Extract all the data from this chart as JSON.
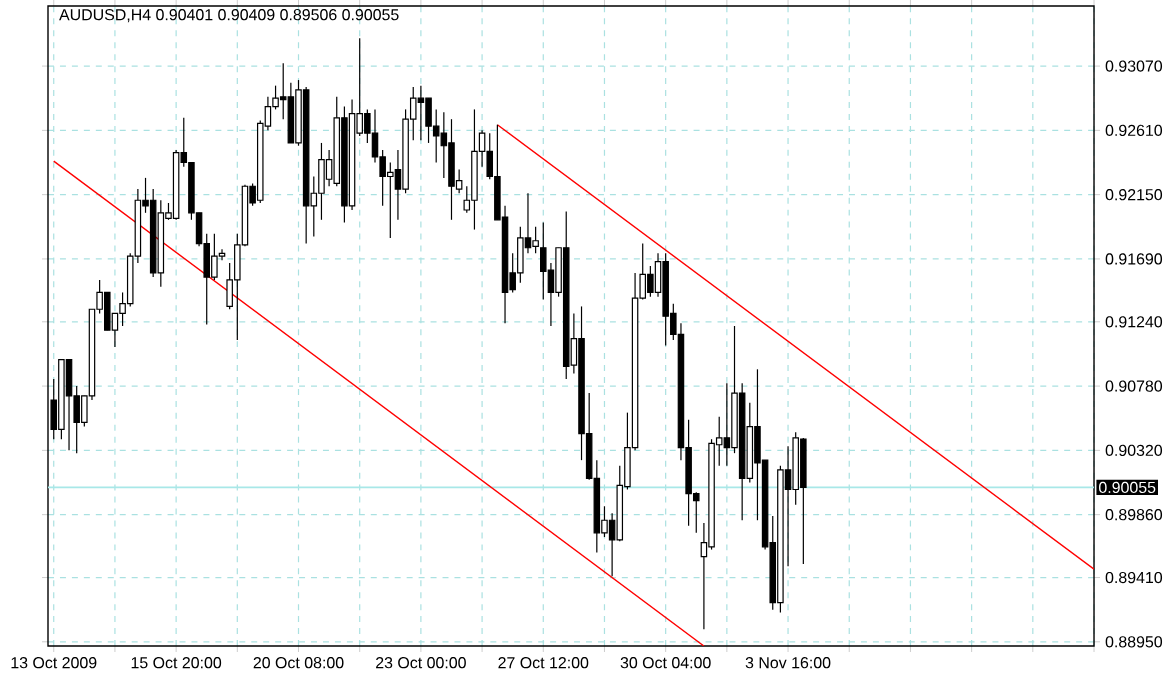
{
  "chart_data": {
    "type": "candlestick",
    "title": "AUDUSD,H4  0.90401 0.90409 0.89506 0.90055",
    "categories": [
      "13 Oct 2009",
      null,
      null,
      null,
      null,
      null,
      null,
      null,
      null,
      null,
      null,
      null,
      null,
      null,
      null,
      null,
      "15 Oct 20:00",
      null,
      null,
      null,
      null,
      null,
      null,
      null,
      null,
      null,
      null,
      null,
      null,
      null,
      null,
      null,
      "20 Oct 08:00",
      null,
      null,
      null,
      null,
      null,
      null,
      null,
      null,
      null,
      null,
      null,
      null,
      null,
      null,
      null,
      "23 Oct 00:00",
      null,
      null,
      null,
      null,
      null,
      null,
      null,
      null,
      null,
      null,
      null,
      null,
      null,
      null,
      null,
      "27 Oct 12:00",
      null,
      null,
      null,
      null,
      null,
      null,
      null,
      null,
      null,
      null,
      null,
      null,
      null,
      null,
      null,
      "30 Oct 04:00",
      null,
      null,
      null,
      null,
      null,
      null,
      null,
      null,
      null,
      null,
      null,
      null,
      null,
      null,
      null,
      "3 Nov 16:00",
      null,
      null,
      null,
      null,
      null,
      null,
      null,
      null,
      null,
      null,
      null,
      null,
      null,
      null,
      null,
      null,
      null,
      null,
      null,
      null,
      null,
      null,
      null,
      null,
      null,
      null,
      null,
      null,
      null,
      null,
      null,
      null,
      null,
      null,
      null,
      null,
      null,
      null,
      null,
      null
    ],
    "ohlc": [
      [
        0.9068,
        0.9083,
        0.904,
        0.9047
      ],
      [
        0.9047,
        0.9097,
        0.904,
        0.9097
      ],
      [
        0.9097,
        0.9097,
        0.9032,
        0.9071
      ],
      [
        0.9071,
        0.9078,
        0.903,
        0.9052
      ],
      [
        0.9052,
        0.9071,
        0.9049,
        0.9071
      ],
      [
        0.9071,
        0.9133,
        0.9068,
        0.9133
      ],
      [
        0.9133,
        0.9154,
        0.913,
        0.9145
      ],
      [
        0.9145,
        0.9145,
        0.9118,
        0.9118
      ],
      [
        0.9118,
        0.913,
        0.9106,
        0.913
      ],
      [
        0.913,
        0.9145,
        0.9121,
        0.9137
      ],
      [
        0.9137,
        0.9173,
        0.9135,
        0.9171
      ],
      [
        0.9171,
        0.9219,
        0.9166,
        0.9211
      ],
      [
        0.9211,
        0.9227,
        0.9202,
        0.9207
      ],
      [
        0.9211,
        0.9219,
        0.9156,
        0.9159
      ],
      [
        0.9159,
        0.9211,
        0.9149,
        0.9202
      ],
      [
        0.9198,
        0.9209,
        0.9197,
        0.9202
      ],
      [
        0.9198,
        0.9247,
        0.9197,
        0.9245
      ],
      [
        0.9245,
        0.927,
        0.9235,
        0.9238
      ],
      [
        0.9238,
        0.9238,
        0.9197,
        0.9202
      ],
      [
        0.9202,
        0.9202,
        0.9178,
        0.918
      ],
      [
        0.918,
        0.9187,
        0.9122,
        0.9156
      ],
      [
        0.9156,
        0.9187,
        0.9154,
        0.9171
      ],
      [
        0.9171,
        0.9176,
        0.9168,
        0.9173
      ],
      [
        0.9135,
        0.9166,
        0.9133,
        0.9154
      ],
      [
        0.9154,
        0.9187,
        0.9111,
        0.9179
      ],
      [
        0.9179,
        0.9222,
        0.9178,
        0.9221
      ],
      [
        0.9221,
        0.9223,
        0.9207,
        0.9209
      ],
      [
        0.9211,
        0.9268,
        0.9209,
        0.9266
      ],
      [
        0.9264,
        0.9285,
        0.9261,
        0.9278
      ],
      [
        0.9278,
        0.9293,
        0.9276,
        0.9284
      ],
      [
        0.9285,
        0.9309,
        0.9269,
        0.9283
      ],
      [
        0.9285,
        0.9295,
        0.9252,
        0.9252
      ],
      [
        0.9252,
        0.9297,
        0.925,
        0.929
      ],
      [
        0.929,
        0.9292,
        0.918,
        0.9207
      ],
      [
        0.9207,
        0.9228,
        0.9185,
        0.9216
      ],
      [
        0.9216,
        0.9252,
        0.9197,
        0.924
      ],
      [
        0.9226,
        0.9247,
        0.9221,
        0.924
      ],
      [
        0.9223,
        0.9285,
        0.9221,
        0.927
      ],
      [
        0.927,
        0.9278,
        0.9195,
        0.9207
      ],
      [
        0.9207,
        0.9283,
        0.9204,
        0.9273
      ],
      [
        0.9259,
        0.9327,
        0.9257,
        0.9273
      ],
      [
        0.9273,
        0.9276,
        0.9252,
        0.9259
      ],
      [
        0.9259,
        0.9276,
        0.9238,
        0.9242
      ],
      [
        0.9242,
        0.9247,
        0.9207,
        0.9228
      ],
      [
        0.9228,
        0.9238,
        0.9184,
        0.9231
      ],
      [
        0.9233,
        0.9247,
        0.9197,
        0.9219
      ],
      [
        0.9219,
        0.9276,
        0.9216,
        0.9269
      ],
      [
        0.9269,
        0.9292,
        0.9254,
        0.9284
      ],
      [
        0.9284,
        0.9293,
        0.9254,
        0.9281
      ],
      [
        0.9284,
        0.9284,
        0.9252,
        0.9264
      ],
      [
        0.9264,
        0.9276,
        0.9238,
        0.9257
      ],
      [
        0.9259,
        0.9274,
        0.9227,
        0.925
      ],
      [
        0.9252,
        0.9269,
        0.9197,
        0.9221
      ],
      [
        0.9219,
        0.9233,
        0.9216,
        0.9225
      ],
      [
        0.9204,
        0.9221,
        0.9202,
        0.9211
      ],
      [
        0.9211,
        0.9276,
        0.919,
        0.9246
      ],
      [
        0.9246,
        0.9261,
        0.9235,
        0.9259
      ],
      [
        0.9246,
        0.9259,
        0.9226,
        0.9228
      ],
      [
        0.9228,
        0.9265,
        0.9197,
        0.9197
      ],
      [
        0.9199,
        0.9207,
        0.9123,
        0.9145
      ],
      [
        0.9159,
        0.9173,
        0.9145,
        0.9147
      ],
      [
        0.9159,
        0.9192,
        0.9152,
        0.9184
      ],
      [
        0.9184,
        0.9216,
        0.9173,
        0.9177
      ],
      [
        0.9178,
        0.9192,
        0.9173,
        0.9182
      ],
      [
        0.9177,
        0.9195,
        0.914,
        0.916
      ],
      [
        0.9161,
        0.9166,
        0.9121,
        0.9145
      ],
      [
        0.9145,
        0.9177,
        0.9142,
        0.9177
      ],
      [
        0.9177,
        0.9203,
        0.9083,
        0.9092
      ],
      [
        0.9093,
        0.913,
        0.9087,
        0.9112
      ],
      [
        0.9112,
        0.9135,
        0.9025,
        0.9044
      ],
      [
        0.9044,
        0.9073,
        0.9011,
        0.9012
      ],
      [
        0.9012,
        0.9025,
        0.8959,
        0.8973
      ],
      [
        0.8973,
        0.8992,
        0.897,
        0.8982
      ],
      [
        0.8982,
        0.8987,
        0.8942,
        0.8968
      ],
      [
        0.8968,
        0.9021,
        0.8967,
        0.9007
      ],
      [
        0.9006,
        0.9059,
        0.9004,
        0.9034
      ],
      [
        0.9034,
        0.9159,
        0.9032,
        0.9141
      ],
      [
        0.9141,
        0.918,
        0.914,
        0.9158
      ],
      [
        0.9158,
        0.9164,
        0.9142,
        0.9145
      ],
      [
        0.9145,
        0.9173,
        0.9142,
        0.9167
      ],
      [
        0.9167,
        0.9173,
        0.9107,
        0.9128
      ],
      [
        0.913,
        0.9137,
        0.9111,
        0.9115
      ],
      [
        0.9115,
        0.9123,
        0.9025,
        0.9034
      ],
      [
        0.9034,
        0.9054,
        0.8978,
        0.9001
      ],
      [
        0.9001,
        0.9002,
        0.8973,
        0.8996
      ],
      [
        0.8956,
        0.898,
        0.8904,
        0.8966
      ],
      [
        0.8963,
        0.904,
        0.8961,
        0.9037
      ],
      [
        0.9036,
        0.9056,
        0.9021,
        0.9041
      ],
      [
        0.9041,
        0.908,
        0.9021,
        0.9034
      ],
      [
        0.9034,
        0.9121,
        0.903,
        0.9073
      ],
      [
        0.9073,
        0.908,
        0.8982,
        0.9012
      ],
      [
        0.9012,
        0.9066,
        0.9009,
        0.9049
      ],
      [
        0.9049,
        0.909,
        0.8982,
        0.9023
      ],
      [
        0.9025,
        0.9025,
        0.8961,
        0.8963
      ],
      [
        0.8966,
        0.8985,
        0.8918,
        0.8923
      ],
      [
        0.8923,
        0.9021,
        0.8916,
        0.9018
      ],
      [
        0.9018,
        0.9035,
        0.8949,
        0.9004
      ],
      [
        0.9004,
        0.9045,
        0.8993,
        0.9041
      ],
      [
        0.90401,
        0.90409,
        0.89506,
        0.90055
      ],
      null,
      null,
      null,
      null,
      null,
      null,
      null,
      null,
      null,
      null,
      null,
      null,
      null,
      null,
      null,
      null,
      null,
      null,
      null,
      null,
      null,
      null,
      null,
      null,
      null,
      null,
      null,
      null,
      null,
      null,
      null,
      null,
      null,
      null,
      null,
      null,
      null,
      null
    ],
    "series": [
      {
        "type": "line",
        "color": "#ff0000",
        "values": [
          null,
          null,
          null,
          null,
          null,
          null,
          null,
          null,
          null,
          null,
          null,
          null,
          null,
          null,
          null,
          null,
          null,
          null,
          null,
          null,
          null,
          null,
          null,
          null,
          null,
          null,
          null,
          null,
          null,
          null,
          null,
          null,
          null,
          null,
          null,
          null,
          null,
          null,
          null,
          null,
          null,
          null,
          null,
          null,
          null,
          null,
          null,
          null,
          null,
          null,
          null,
          null,
          null,
          null,
          null,
          null,
          null,
          null,
          0.9265,
          null,
          null,
          null,
          null,
          null,
          null,
          null,
          null,
          null,
          null,
          null,
          null,
          null,
          null,
          null,
          null,
          null,
          null,
          null,
          null,
          null,
          null,
          null,
          null,
          null,
          null,
          null,
          null,
          null,
          null,
          null,
          null,
          null,
          null,
          null,
          null,
          null,
          null,
          null,
          null,
          null,
          null,
          null,
          null,
          null,
          null,
          null,
          null,
          null,
          null,
          null,
          null,
          null,
          null,
          null,
          null,
          null,
          null,
          null,
          null,
          null,
          null,
          null,
          null,
          null,
          null,
          null,
          null,
          null,
          null,
          null,
          null,
          null,
          null,
          null,
          null,
          null,
          0.8947
        ]
      },
      {
        "type": "line",
        "color": "#ff0000",
        "values": [
          0.9239,
          null,
          null,
          null,
          null,
          null,
          null,
          null,
          null,
          null,
          null,
          null,
          null,
          null,
          null,
          null,
          null,
          null,
          null,
          null,
          null,
          null,
          null,
          null,
          null,
          null,
          null,
          null,
          null,
          null,
          null,
          null,
          null,
          null,
          null,
          null,
          null,
          null,
          null,
          null,
          null,
          null,
          null,
          null,
          null,
          null,
          null,
          null,
          null,
          null,
          null,
          null,
          null,
          null,
          null,
          null,
          null,
          null,
          null,
          null,
          null,
          null,
          null,
          null,
          null,
          null,
          null,
          null,
          null,
          null,
          null,
          null,
          null,
          null,
          null,
          null,
          null,
          null,
          null,
          null,
          null,
          null,
          null,
          null,
          null,
          0.8892,
          null,
          null,
          null,
          null,
          null,
          null,
          null,
          null,
          null,
          null,
          null,
          null,
          null,
          null,
          null,
          null,
          null,
          null,
          null,
          null,
          null,
          null,
          null,
          null,
          null,
          null,
          null,
          null,
          null,
          null,
          null,
          null,
          null,
          null,
          null,
          null,
          null,
          null,
          null,
          null,
          null,
          null,
          null,
          null,
          null,
          null,
          null,
          null,
          null,
          null,
          null
        ]
      }
    ],
    "ylim": [
      0.8892,
      0.935
    ],
    "yticks": [
      {
        "value": 0.8895,
        "label": "0.88950"
      },
      {
        "value": 0.8941,
        "label": "0.89410"
      },
      {
        "value": 0.8986,
        "label": "0.89860"
      },
      {
        "value": 0.9032,
        "label": "0.90320"
      },
      {
        "value": 0.9078,
        "label": "0.90780"
      },
      {
        "value": 0.9124,
        "label": "0.91240"
      },
      {
        "value": 0.9169,
        "label": "0.91690"
      },
      {
        "value": 0.9215,
        "label": "0.92150"
      },
      {
        "value": 0.9261,
        "label": "0.92610"
      },
      {
        "value": 0.9307,
        "label": "0.93070"
      }
    ],
    "ref_lines": [
      {
        "axis": "y",
        "value": 0.90055,
        "label": "0.90055",
        "color": "#a8e8e8"
      }
    ],
    "grid": true,
    "marker": "none"
  }
}
